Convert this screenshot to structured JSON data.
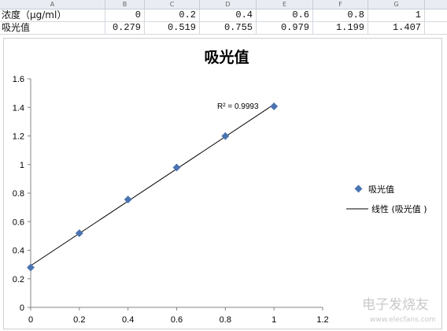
{
  "sheet": {
    "columns": [
      "A",
      "B",
      "C",
      "D",
      "E",
      "F",
      "G"
    ],
    "rows": [
      {
        "label": "浓度（μg/ml）",
        "values": [
          "0",
          "0.2",
          "0.4",
          "0.6",
          "0.8",
          "1"
        ]
      },
      {
        "label": "吸光值",
        "values": [
          "0.279",
          "0.519",
          "0.755",
          "0.979",
          "1.199",
          "1.407"
        ]
      }
    ]
  },
  "chart_data": {
    "type": "scatter",
    "title": "吸光值",
    "x": [
      0,
      0.2,
      0.4,
      0.6,
      0.8,
      1.0
    ],
    "series": [
      {
        "name": "吸光值",
        "values": [
          0.279,
          0.519,
          0.755,
          0.979,
          1.199,
          1.407
        ],
        "color": "#4a73b0"
      }
    ],
    "trendline": {
      "label": "线性 (吸光值 )",
      "annotation": "R² = 0.9993",
      "color": "#000000"
    },
    "xlim": [
      0,
      1.2
    ],
    "ylim": [
      0,
      1.6
    ],
    "xticks": [
      "0",
      "0.2",
      "0.4",
      "0.6",
      "0.8",
      "1",
      "1.2"
    ],
    "yticks": [
      "0",
      "0.2",
      "0.4",
      "0.6",
      "0.8",
      "1",
      "1.2",
      "1.4",
      "1.6"
    ],
    "grid": false,
    "legend": "right"
  },
  "watermark": {
    "left": "",
    "right": "电子发烧友",
    "right_sub": "www.elecfans.com"
  }
}
